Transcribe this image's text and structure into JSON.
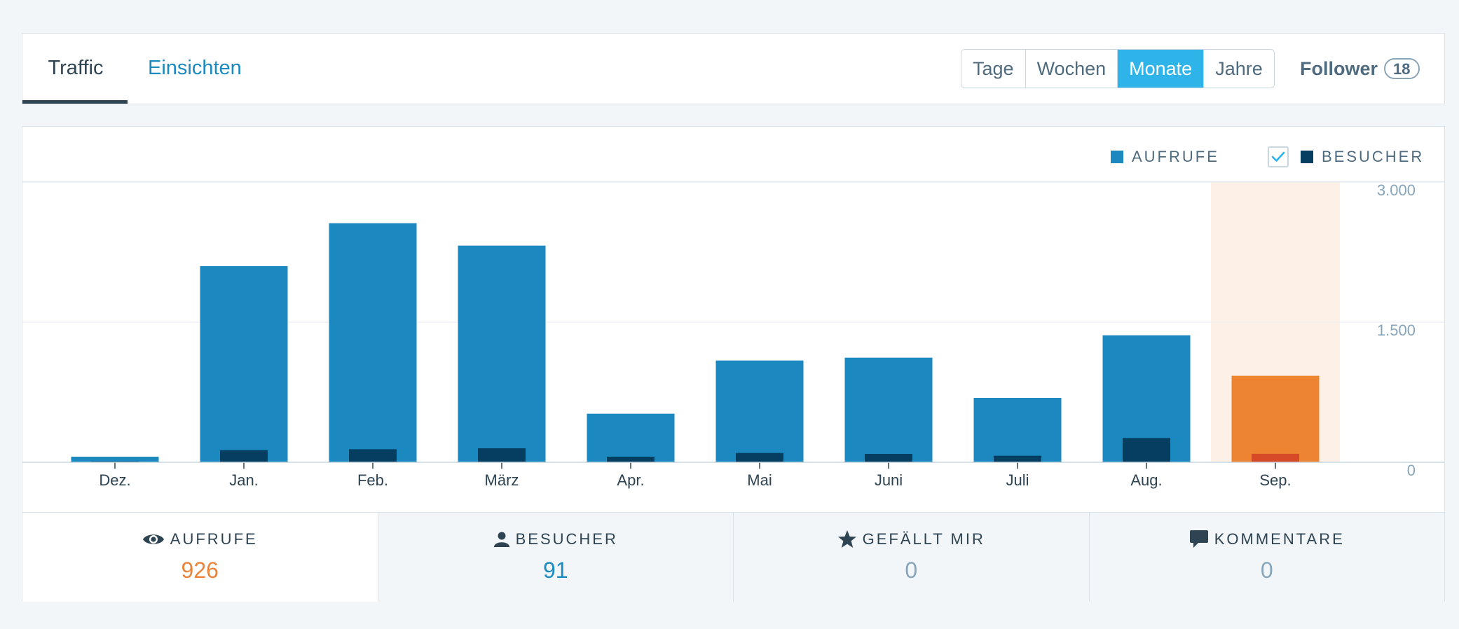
{
  "tabs": {
    "traffic": "Traffic",
    "insights": "Einsichten"
  },
  "period": {
    "options": [
      "Tage",
      "Wochen",
      "Monate",
      "Jahre"
    ],
    "selected": "Monate"
  },
  "follower": {
    "label": "Follower",
    "count": "18"
  },
  "legend": {
    "views": "AUFRUFE",
    "visitors": "BESUCHER",
    "visitors_checked": true
  },
  "colors": {
    "views": "#1b89bf",
    "visitors": "#063e62",
    "highlight_views": "#ed8431",
    "highlight_visitors": "#d74a27",
    "highlight_band": "#fdf1e7",
    "active_button": "#2eb4e8"
  },
  "chart_data": {
    "type": "bar",
    "categories": [
      "Dez.",
      "Jan.",
      "Feb.",
      "März",
      "Apr.",
      "Mai",
      "Juni",
      "Juli",
      "Aug.",
      "Sep."
    ],
    "series": [
      {
        "name": "AUFRUFE",
        "values": [
          60,
          2100,
          2560,
          2320,
          520,
          1090,
          1120,
          690,
          1360,
          926
        ]
      },
      {
        "name": "BESUCHER",
        "values": [
          10,
          130,
          140,
          150,
          60,
          100,
          90,
          70,
          260,
          91
        ]
      }
    ],
    "y_ticks": [
      "3.000",
      "1.500",
      "0"
    ],
    "ylim": [
      0,
      3000
    ],
    "grid": true,
    "highlighted_category": "Sep."
  },
  "stats": [
    {
      "icon": "eye-icon",
      "label": "AUFRUFE",
      "value": "926",
      "color": "#e9843a",
      "selected": true
    },
    {
      "icon": "user-icon",
      "label": "BESUCHER",
      "value": "91",
      "color": "#1b8ac0",
      "selected": false
    },
    {
      "icon": "star-icon",
      "label": "GEFÄLLT MIR",
      "value": "0",
      "color": "#87a6bc",
      "selected": false
    },
    {
      "icon": "comment-icon",
      "label": "KOMMENTARE",
      "value": "0",
      "color": "#87a6bc",
      "selected": false
    }
  ]
}
